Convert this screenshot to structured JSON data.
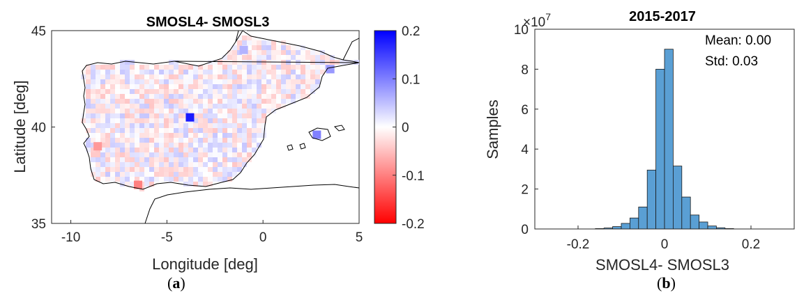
{
  "chart_data": [
    {
      "type": "heatmap",
      "title": "SMOSL4- SMOSL3",
      "xlabel": "Longitude [deg]",
      "ylabel": "Latitude [deg]",
      "xlim": [
        -11,
        5
      ],
      "ylim": [
        35,
        45
      ],
      "xticks": [
        -10,
        -5,
        0,
        5
      ],
      "yticks": [
        35,
        40,
        45
      ],
      "colorbar": {
        "ticks": [
          "0.2",
          "0.1",
          "0",
          "-0.1",
          "-0.2"
        ],
        "range": [
          -0.2,
          0.2
        ],
        "colors": [
          "#ff0000",
          "#ffffff",
          "#0000ff"
        ]
      },
      "panel_label": "a",
      "hotspots": [
        {
          "lon": -3.8,
          "lat": 40.5,
          "value": 0.18
        },
        {
          "lon": 2.8,
          "lat": 39.6,
          "value": 0.1
        },
        {
          "lon": 3.5,
          "lat": 43.0,
          "value": 0.08
        },
        {
          "lon": -6.5,
          "lat": 37.0,
          "value": -0.1
        },
        {
          "lon": -8.6,
          "lat": 39.0,
          "value": -0.08
        },
        {
          "lon": -1.0,
          "lat": 44.0,
          "value": 0.06
        }
      ]
    },
    {
      "type": "bar",
      "title": "2015-2017",
      "xlabel": "SMOSL4- SMOSL3",
      "ylabel": "Samples",
      "exponent_label": "×10",
      "exponent_power": "7",
      "xlim": [
        -0.3,
        0.3
      ],
      "ylim": [
        0,
        10
      ],
      "xticks": [
        -0.2,
        0,
        0.2
      ],
      "yticks": [
        0,
        2,
        4,
        6,
        8,
        10
      ],
      "bin_width": 0.02,
      "bin_centers": [
        -0.15,
        -0.13,
        -0.11,
        -0.09,
        -0.07,
        -0.05,
        -0.03,
        -0.01,
        0.01,
        0.03,
        0.05,
        0.07,
        0.09,
        0.11,
        0.13,
        0.15
      ],
      "values": [
        0.02,
        0.05,
        0.12,
        0.28,
        0.55,
        1.1,
        2.95,
        8.0,
        9.0,
        3.15,
        1.6,
        0.7,
        0.35,
        0.15,
        0.06,
        0.02
      ],
      "bar_color": "#5a9fd4",
      "stats": {
        "mean": "Mean: 0.00",
        "std": "Std: 0.03"
      },
      "panel_label": "b"
    }
  ]
}
